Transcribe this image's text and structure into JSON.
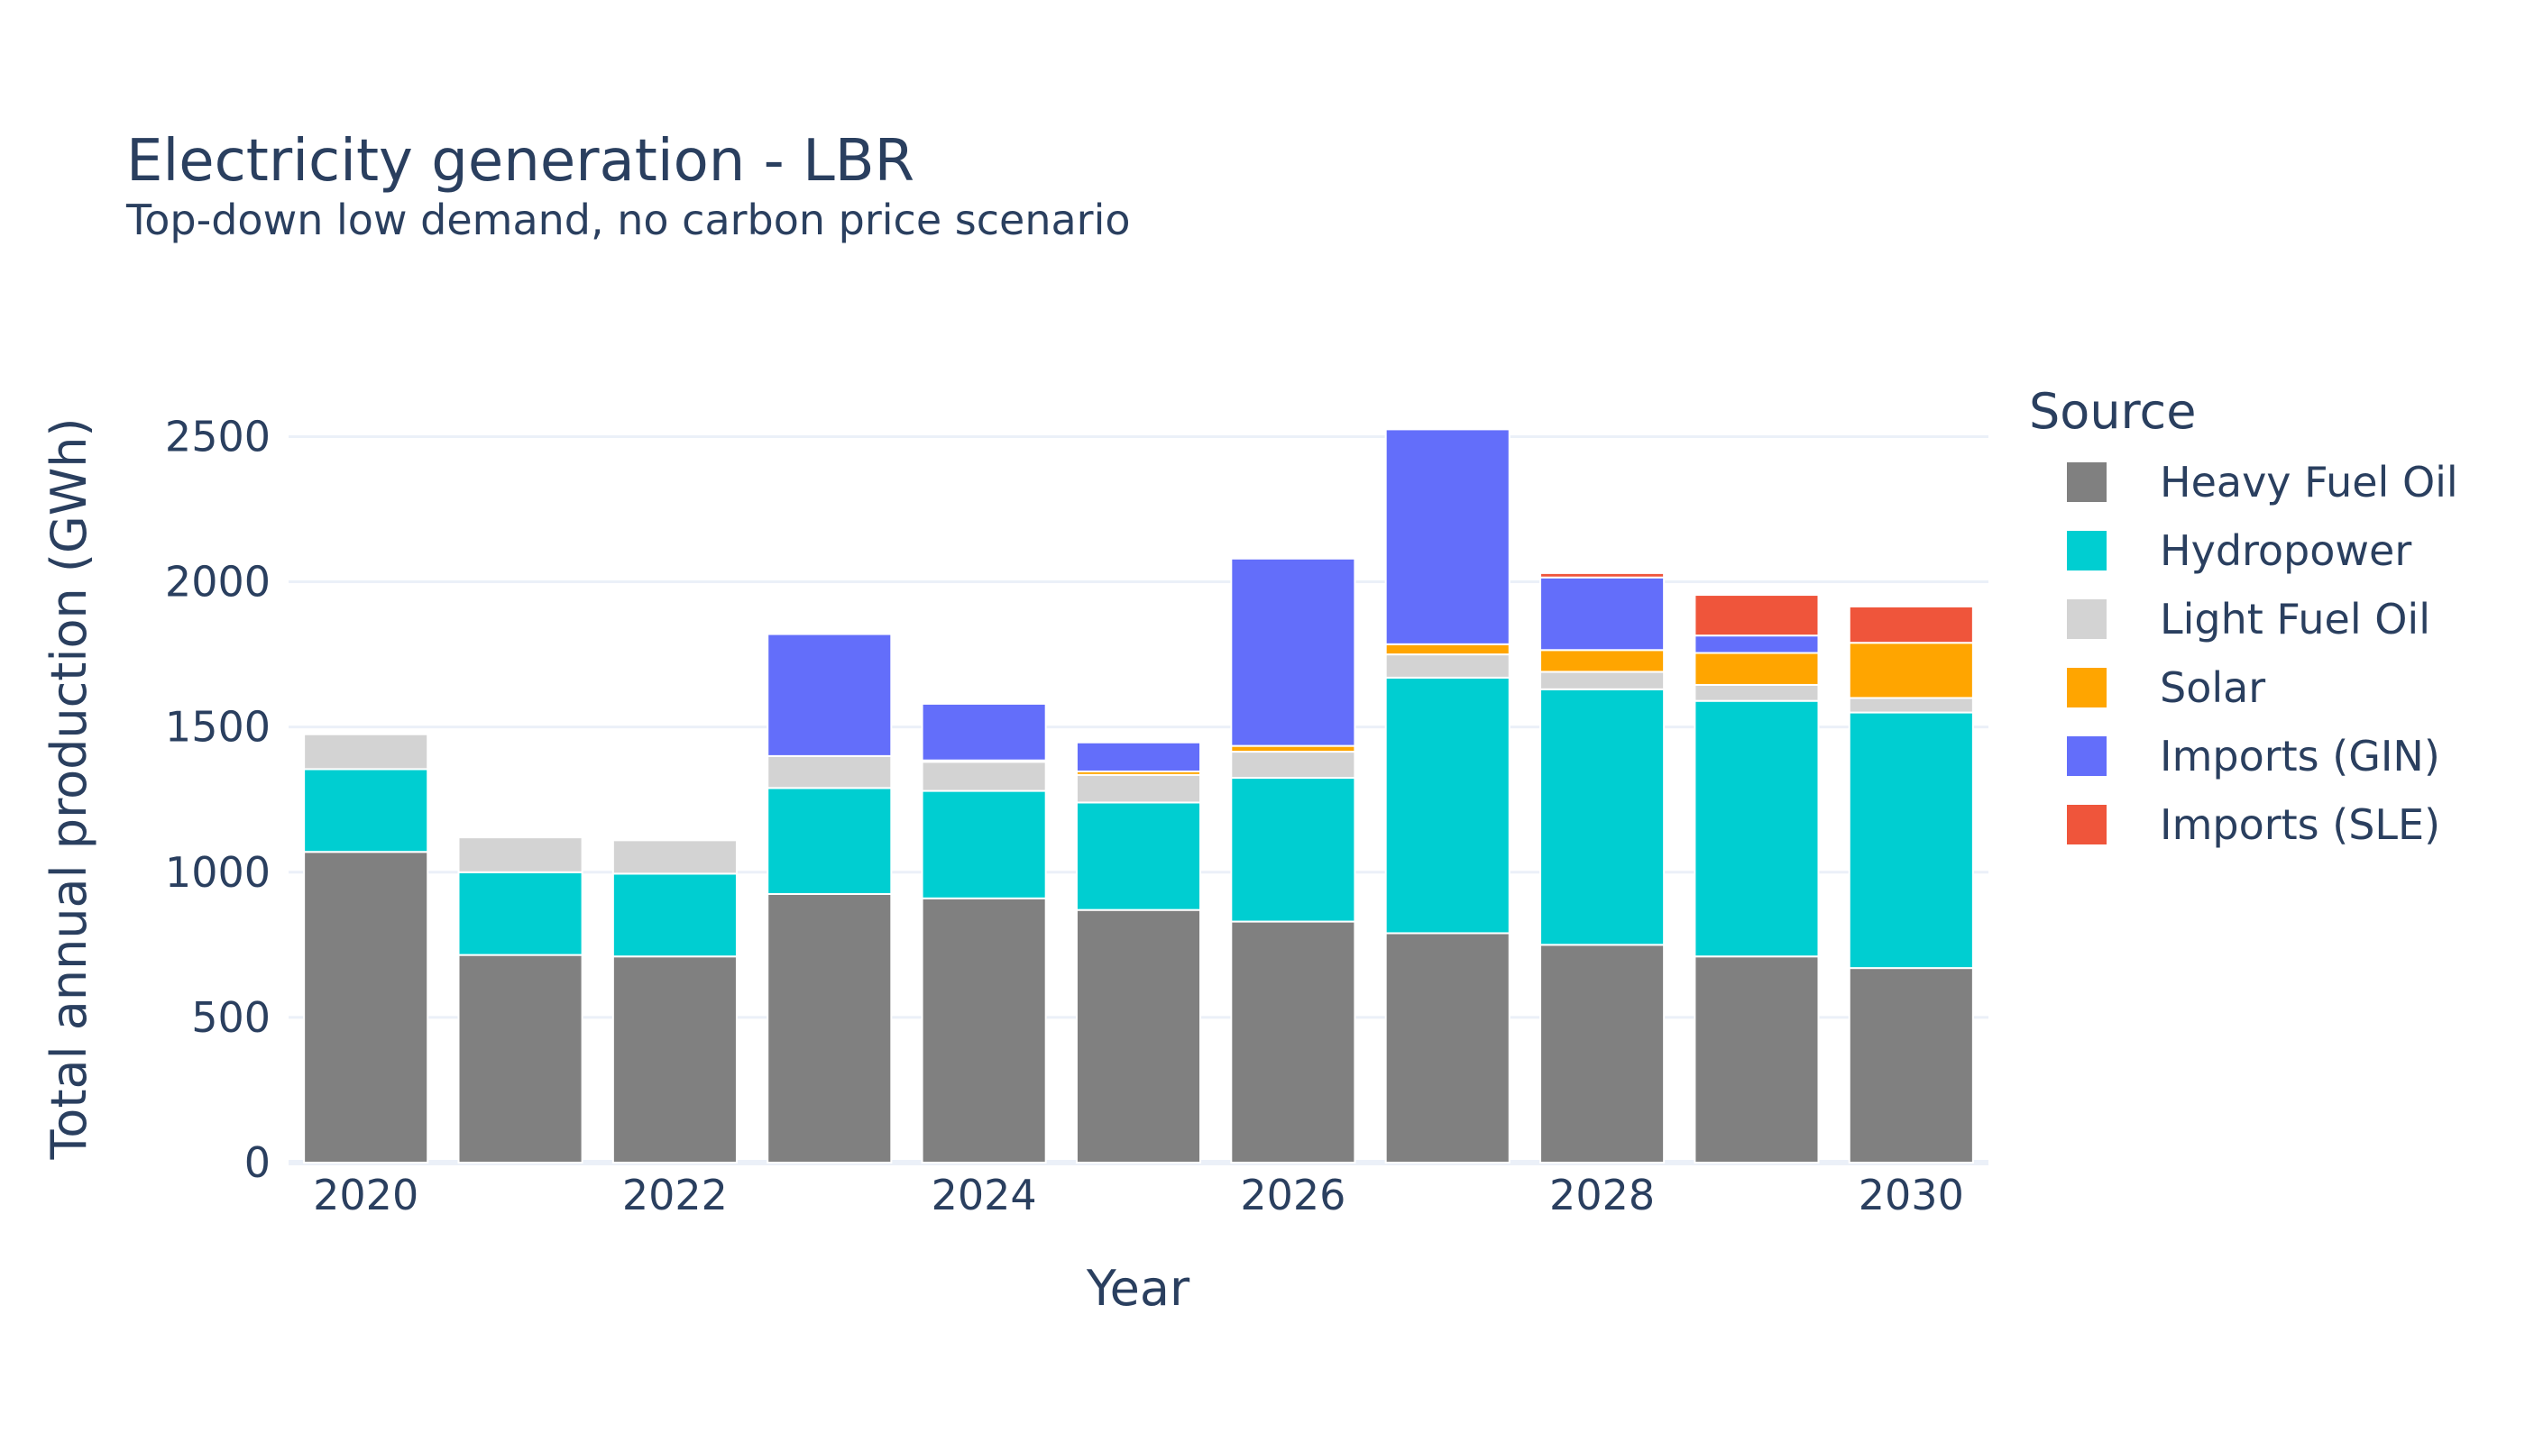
{
  "chart_data": {
    "type": "bar",
    "stacked": true,
    "title": "Electricity generation - LBR",
    "subtitle": "Top-down low demand, no carbon price scenario",
    "xlabel": "Year",
    "ylabel": "Total annual production (GWh)",
    "ylim": [
      0,
      2700
    ],
    "yticks": [
      0,
      500,
      1000,
      1500,
      2000,
      2500
    ],
    "xticks": [
      "2020",
      "2022",
      "2024",
      "2026",
      "2028",
      "2030"
    ],
    "grid": true,
    "legend_title": "Source",
    "legend_position": "right",
    "categories": [
      "2020",
      "2021",
      "2022",
      "2023",
      "2024",
      "2025",
      "2026",
      "2027",
      "2028",
      "2029",
      "2030"
    ],
    "series": [
      {
        "name": "Heavy Fuel Oil",
        "color": "#808080",
        "values": [
          1070,
          715,
          710,
          925,
          910,
          870,
          830,
          790,
          750,
          710,
          670
        ]
      },
      {
        "name": "Hydropower",
        "color": "#00CED1",
        "values": [
          285,
          285,
          285,
          365,
          370,
          370,
          495,
          880,
          880,
          880,
          880
        ]
      },
      {
        "name": "Light Fuel Oil",
        "color": "#D3D3D3",
        "values": [
          120,
          120,
          115,
          110,
          100,
          95,
          90,
          80,
          60,
          55,
          50
        ]
      },
      {
        "name": "Solar",
        "color": "#FFA500",
        "values": [
          0,
          0,
          0,
          0,
          5,
          12,
          20,
          35,
          75,
          110,
          190
        ]
      },
      {
        "name": "Imports (GIN)",
        "color": "#636EFA",
        "values": [
          0,
          0,
          0,
          420,
          195,
          100,
          645,
          740,
          250,
          60,
          0
        ]
      },
      {
        "name": "Imports (SLE)",
        "color": "#EF553B",
        "values": [
          0,
          0,
          0,
          0,
          0,
          0,
          0,
          0,
          15,
          140,
          125
        ]
      }
    ]
  }
}
